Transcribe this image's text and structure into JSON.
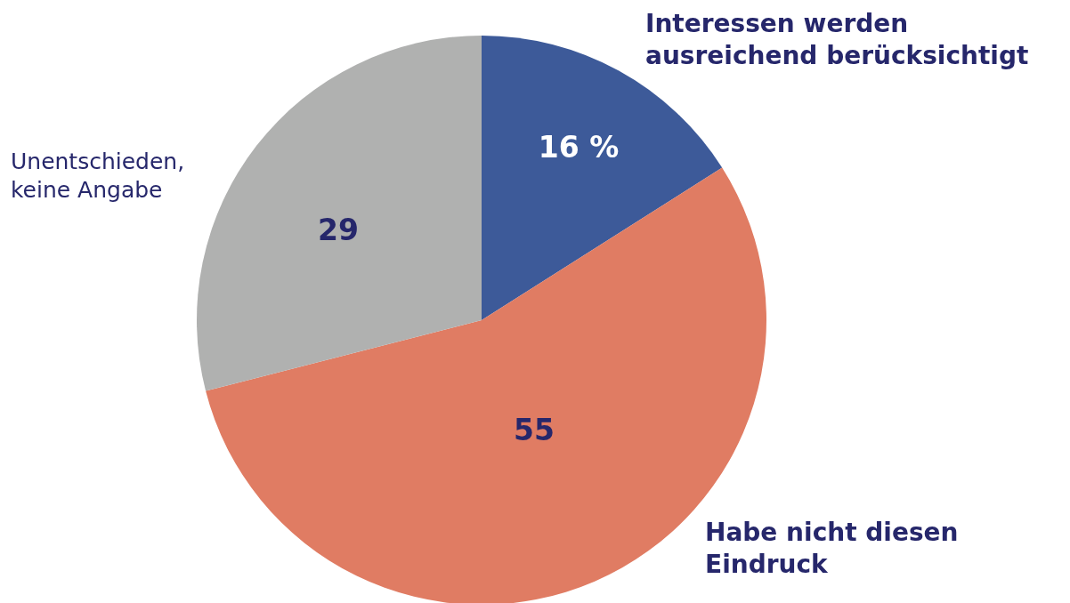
{
  "chart_data": {
    "type": "pie",
    "categories": [
      "Interessen werden\nausreichend berücksichtigt",
      "Habe nicht diesen\nEindruck",
      "Unentschieden,\nkeine Angabe"
    ],
    "values": [
      16,
      55,
      29
    ],
    "value_labels": [
      "16 %",
      "55",
      "29"
    ],
    "colors": [
      "#3d5a99",
      "#e07c63",
      "#b0b1b0"
    ]
  }
}
